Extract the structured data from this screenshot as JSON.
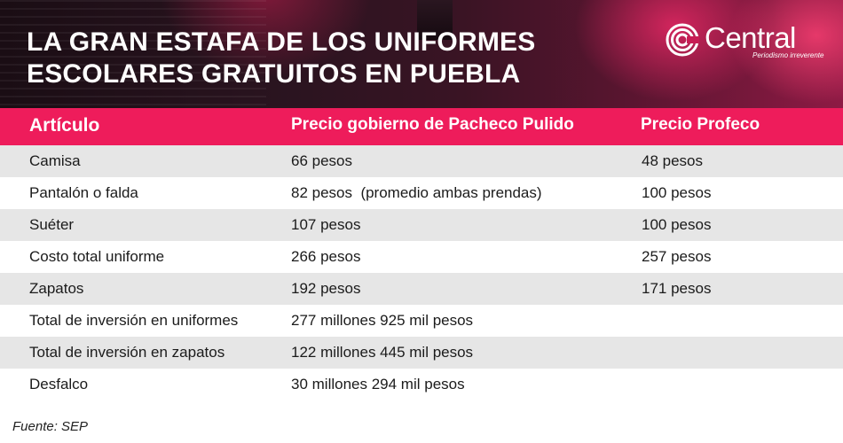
{
  "header": {
    "title_line1": "LA GRAN ESTAFA DE LOS UNIFORMES",
    "title_line2": "ESCOLARES GRATUITOS EN PUEBLA",
    "brand": "Central",
    "brand_tagline": "Periodismo irreverente",
    "accent_color": "#ee1c5b"
  },
  "table": {
    "columns": [
      "Artículo",
      "Precio gobierno de Pacheco Pulido",
      "Precio Profeco"
    ],
    "rows": [
      {
        "item": "Camisa",
        "gov": "66 pesos",
        "profeco": "48 pesos"
      },
      {
        "item": "Pantalón o falda",
        "gov": "82 pesos  (promedio ambas prendas)",
        "profeco": "100 pesos"
      },
      {
        "item": "Suéter",
        "gov": "107 pesos",
        "profeco": "100 pesos"
      },
      {
        "item": "Costo total uniforme",
        "gov": "266 pesos",
        "profeco": "257 pesos"
      },
      {
        "item": "Zapatos",
        "gov": "192 pesos",
        "profeco": "171 pesos"
      },
      {
        "item": "Total de inversión en uniformes",
        "gov": "277 millones 925 mil pesos",
        "profeco": ""
      },
      {
        "item": "Total de inversión en zapatos",
        "gov": "122 millones 445 mil pesos",
        "profeco": ""
      },
      {
        "item": "Desfalco",
        "gov": "30 millones 294 mil pesos",
        "profeco": ""
      }
    ]
  },
  "footer": {
    "source": "Fuente: SEP"
  }
}
